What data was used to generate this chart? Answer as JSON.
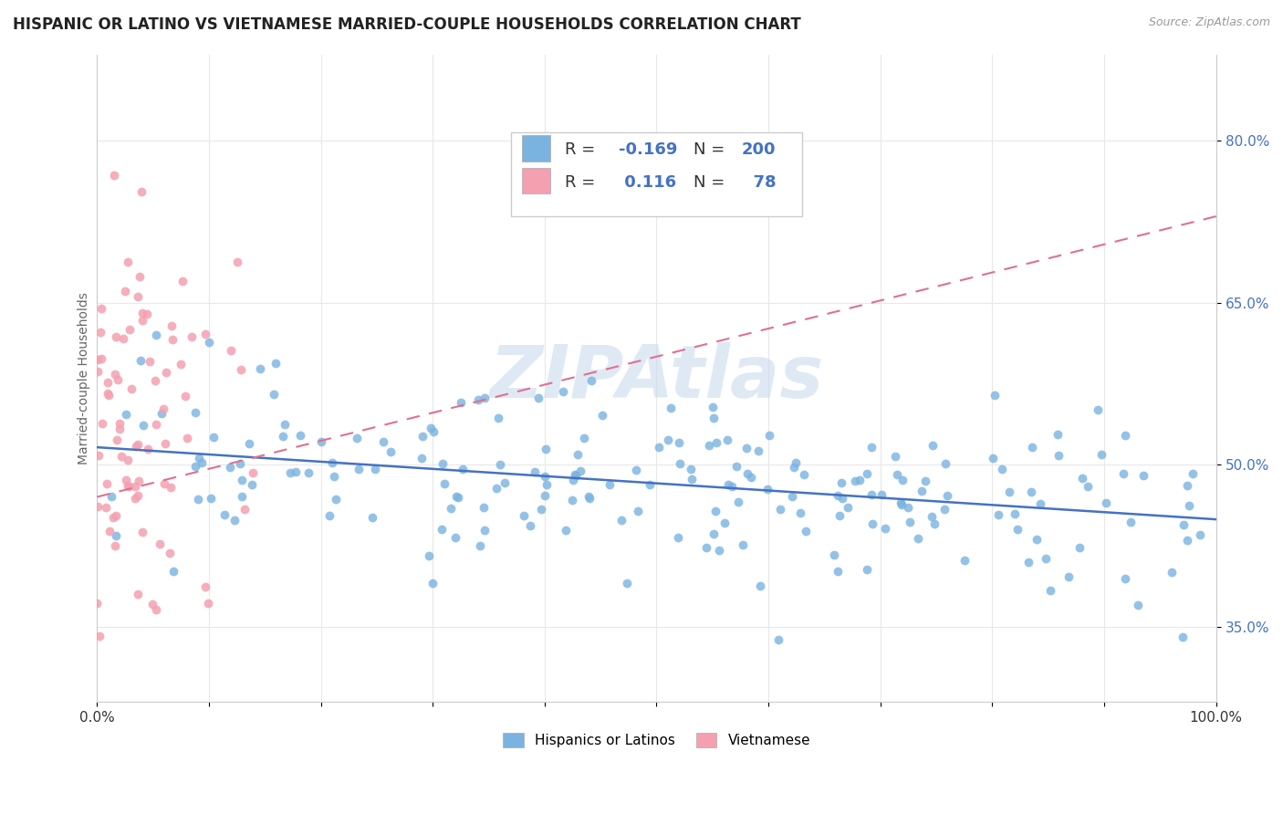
{
  "title": "HISPANIC OR LATINO VS VIETNAMESE MARRIED-COUPLE HOUSEHOLDS CORRELATION CHART",
  "source": "Source: ZipAtlas.com",
  "ylabel": "Married-couple Households",
  "xlim": [
    0.0,
    1.0
  ],
  "ylim": [
    0.28,
    0.88
  ],
  "ytick_positions": [
    0.35,
    0.5,
    0.65,
    0.8
  ],
  "ytick_labels": [
    "35.0%",
    "50.0%",
    "65.0%",
    "80.0%"
  ],
  "blue_color": "#7ab3e0",
  "pink_color": "#f4a0b0",
  "blue_line_color": "#4472c4",
  "pink_line_color": "#e07090",
  "legend_R1": "-0.169",
  "legend_N1": "200",
  "legend_R2": "0.116",
  "legend_N2": "78",
  "watermark": "ZIPAtlas",
  "title_fontsize": 12,
  "legend_fontsize": 13
}
